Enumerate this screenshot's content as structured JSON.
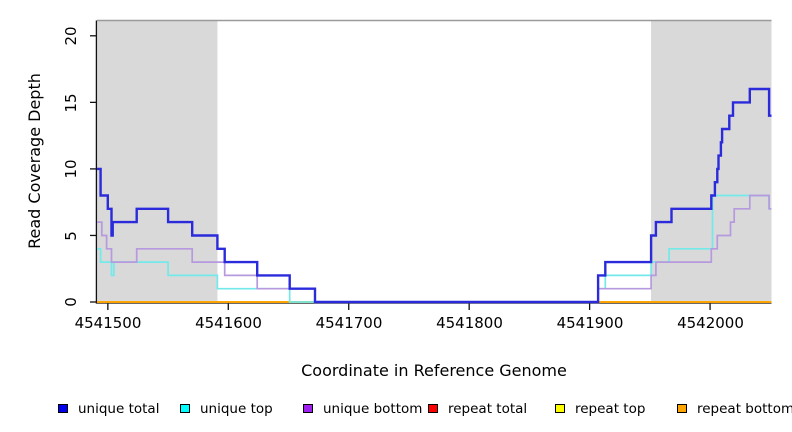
{
  "figure": {
    "y_axis_label": "Read Coverage Depth",
    "x_axis_label": "Coordinate in Reference Genome",
    "y_ticks": [
      "0",
      "5",
      "10",
      "15",
      "20"
    ],
    "x_ticks": [
      "4541500",
      "4541600",
      "4541700",
      "4541800",
      "4541900",
      "4542000"
    ]
  },
  "legend": {
    "items": [
      {
        "label": "unique total",
        "color": "#0000EE"
      },
      {
        "label": "unique top",
        "color": "#00FFFF"
      },
      {
        "label": "unique bottom",
        "color": "#A020F0"
      },
      {
        "label": "repeat total",
        "color": "#FF0000"
      },
      {
        "label": "repeat top",
        "color": "#FFFF00"
      },
      {
        "label": "repeat bottom",
        "color": "#FFA500"
      }
    ]
  },
  "chart_data": {
    "type": "line",
    "subtype": "step-coverage",
    "title": "",
    "xlabel": "Coordinate in Reference Genome",
    "ylabel": "Read Coverage Depth",
    "xlim": [
      4541491,
      4542051
    ],
    "ylim": [
      0,
      21.15
    ],
    "x_tick_values": [
      4541500,
      4541600,
      4541700,
      4541800,
      4541900,
      4542000
    ],
    "y_tick_values": [
      0,
      5,
      10,
      15,
      20
    ],
    "grid": false,
    "legend_position": "bottom",
    "shaded_regions": [
      {
        "x_start": 4541491,
        "x_end": 4541591,
        "color": "#D9D9D9"
      },
      {
        "x_start": 4541951,
        "x_end": 4542051,
        "color": "#D9D9D9"
      }
    ],
    "x_end": 4542051,
    "series": [
      {
        "name": "repeat total",
        "color": "#FF0000",
        "line_width": 1.4,
        "steps": [
          [
            4541491,
            0
          ]
        ]
      },
      {
        "name": "repeat top",
        "color": "#FFFF00",
        "line_width": 1.4,
        "steps": [
          [
            4541491,
            0
          ]
        ]
      },
      {
        "name": "repeat bottom",
        "color": "#FFA500",
        "line_width": 1.8,
        "steps": [
          [
            4541491,
            0
          ]
        ]
      },
      {
        "name": "unique top",
        "color": "#73E9E9",
        "line_width": 1.7,
        "steps": [
          [
            4541491,
            4
          ],
          [
            4541494,
            3
          ],
          [
            4541503,
            2
          ],
          [
            4541505,
            3
          ],
          [
            4541550,
            2
          ],
          [
            4541591,
            1
          ],
          [
            4541651,
            0
          ],
          [
            4541907,
            1
          ],
          [
            4541913,
            2
          ],
          [
            4541951,
            3
          ],
          [
            4541966,
            4
          ],
          [
            4542002,
            8
          ],
          [
            4542049,
            7
          ]
        ]
      },
      {
        "name": "unique bottom",
        "color": "#B699DE",
        "line_width": 1.7,
        "steps": [
          [
            4541491,
            6
          ],
          [
            4541495,
            5
          ],
          [
            4541499,
            4
          ],
          [
            4541503,
            3
          ],
          [
            4541524,
            4
          ],
          [
            4541570,
            3
          ],
          [
            4541597,
            2
          ],
          [
            4541624,
            1
          ],
          [
            4541672,
            0
          ],
          [
            4541907,
            1
          ],
          [
            4541951,
            2
          ],
          [
            4541955,
            3
          ],
          [
            4542001,
            4
          ],
          [
            4542006,
            5
          ],
          [
            4542017,
            6
          ],
          [
            4542020,
            7
          ],
          [
            4542033,
            8
          ],
          [
            4542049,
            7
          ]
        ]
      },
      {
        "name": "unique total",
        "color": "#2B2BDB",
        "line_width": 2.4,
        "steps": [
          [
            4541491,
            10
          ],
          [
            4541494,
            8
          ],
          [
            4541500,
            7
          ],
          [
            4541503,
            5
          ],
          [
            4541504,
            6
          ],
          [
            4541524,
            7
          ],
          [
            4541550,
            6
          ],
          [
            4541570,
            5
          ],
          [
            4541591,
            4
          ],
          [
            4541597,
            3
          ],
          [
            4541624,
            2
          ],
          [
            4541651,
            1
          ],
          [
            4541672,
            0
          ],
          [
            4541907,
            2
          ],
          [
            4541913,
            3
          ],
          [
            4541951,
            5
          ],
          [
            4541955,
            6
          ],
          [
            4541968,
            7
          ],
          [
            4542001,
            8
          ],
          [
            4542004,
            9
          ],
          [
            4542006,
            10
          ],
          [
            4542007,
            11
          ],
          [
            4542009,
            12
          ],
          [
            4542010,
            13
          ],
          [
            4542016,
            14
          ],
          [
            4542019,
            15
          ],
          [
            4542033,
            16
          ],
          [
            4542049,
            14
          ]
        ]
      }
    ]
  }
}
